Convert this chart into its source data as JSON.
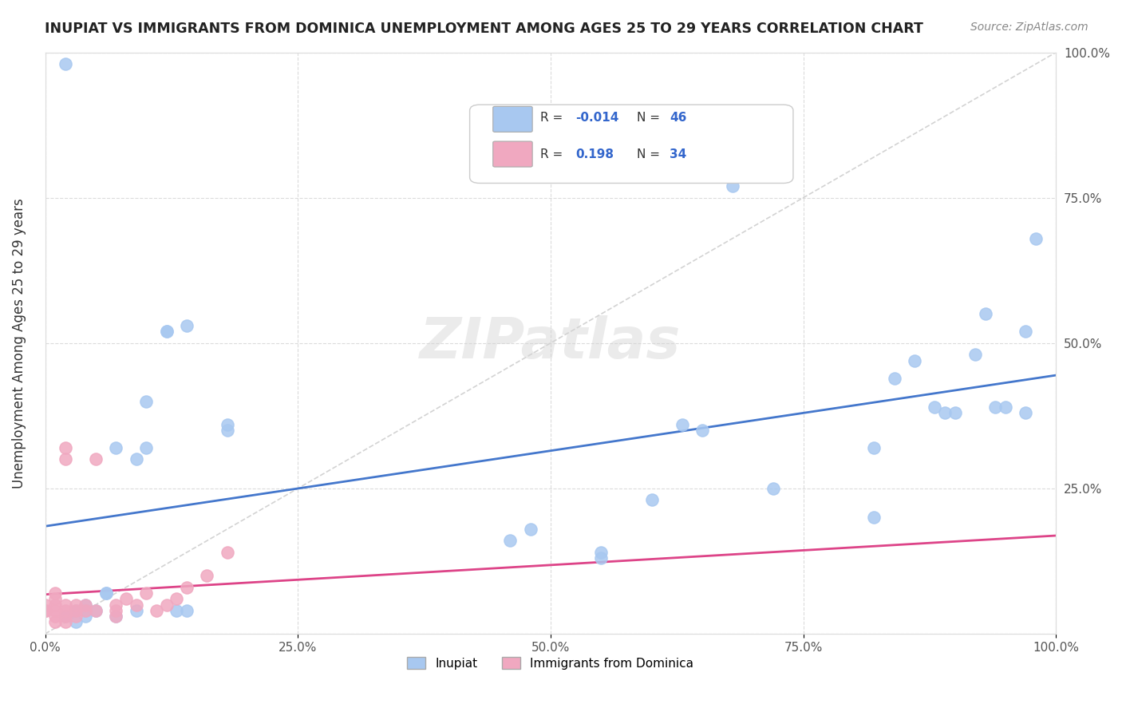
{
  "title": "INUPIAT VS IMMIGRANTS FROM DOMINICA UNEMPLOYMENT AMONG AGES 25 TO 29 YEARS CORRELATION CHART",
  "source": "Source: ZipAtlas.com",
  "xlabel": "",
  "ylabel": "Unemployment Among Ages 25 to 29 years",
  "xlim": [
    0,
    1
  ],
  "ylim": [
    0,
    1
  ],
  "xticks": [
    0,
    0.25,
    0.5,
    0.75,
    1.0
  ],
  "yticks": [
    0,
    0.25,
    0.5,
    0.75,
    1.0
  ],
  "xticklabels": [
    "0.0%",
    "25.0%",
    "50.0%",
    "75.0%",
    "100.0%"
  ],
  "yticklabels": [
    "",
    "25.0%",
    "50.0%",
    "75.0%",
    "100.0%"
  ],
  "legend_labels": [
    "Inupiat",
    "Immigrants from Dominica"
  ],
  "r_inupiat": "-0.014",
  "n_inupiat": "46",
  "r_dominica": "0.198",
  "n_dominica": "34",
  "inupiat_color": "#a8c8f0",
  "dominica_color": "#f0a8c0",
  "inupiat_line_color": "#4477cc",
  "dominica_line_color": "#dd4488",
  "watermark": "ZIPatlas",
  "background_color": "#ffffff",
  "inupiat_x": [
    0.02,
    0.02,
    0.03,
    0.03,
    0.04,
    0.04,
    0.04,
    0.05,
    0.06,
    0.06,
    0.07,
    0.07,
    0.09,
    0.09,
    0.1,
    0.12,
    0.12,
    0.13,
    0.14,
    0.14,
    0.18,
    0.18,
    0.46,
    0.48,
    0.55,
    0.55,
    0.6,
    0.63,
    0.65,
    0.68,
    0.72,
    0.82,
    0.82,
    0.84,
    0.86,
    0.88,
    0.89,
    0.9,
    0.92,
    0.93,
    0.94,
    0.95,
    0.97,
    0.97,
    0.98,
    0.1
  ],
  "inupiat_y": [
    0.98,
    0.03,
    0.02,
    0.04,
    0.03,
    0.04,
    0.05,
    0.04,
    0.07,
    0.07,
    0.03,
    0.32,
    0.04,
    0.3,
    0.32,
    0.52,
    0.52,
    0.04,
    0.04,
    0.53,
    0.35,
    0.36,
    0.16,
    0.18,
    0.14,
    0.13,
    0.23,
    0.36,
    0.35,
    0.77,
    0.25,
    0.2,
    0.32,
    0.44,
    0.47,
    0.39,
    0.38,
    0.38,
    0.48,
    0.55,
    0.39,
    0.39,
    0.38,
    0.52,
    0.68,
    0.4
  ],
  "dominica_x": [
    0.0,
    0.0,
    0.0,
    0.01,
    0.01,
    0.01,
    0.01,
    0.01,
    0.01,
    0.02,
    0.02,
    0.02,
    0.02,
    0.02,
    0.02,
    0.03,
    0.03,
    0.03,
    0.04,
    0.04,
    0.05,
    0.05,
    0.07,
    0.07,
    0.07,
    0.08,
    0.09,
    0.1,
    0.11,
    0.12,
    0.13,
    0.14,
    0.16,
    0.18
  ],
  "dominica_y": [
    0.04,
    0.04,
    0.05,
    0.02,
    0.03,
    0.04,
    0.05,
    0.06,
    0.07,
    0.02,
    0.03,
    0.04,
    0.05,
    0.3,
    0.32,
    0.03,
    0.04,
    0.05,
    0.04,
    0.05,
    0.04,
    0.3,
    0.03,
    0.04,
    0.05,
    0.06,
    0.05,
    0.07,
    0.04,
    0.05,
    0.06,
    0.08,
    0.1,
    0.14
  ]
}
